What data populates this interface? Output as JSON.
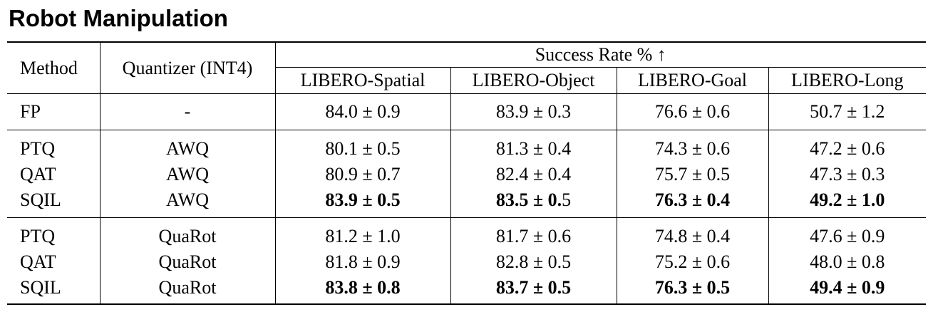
{
  "title": "Robot Manipulation",
  "table": {
    "header": {
      "method": "Method",
      "quantizer": "Quantizer (INT4)",
      "group": "Success Rate % ↑",
      "tasks": [
        "LIBERO-Spatial",
        "LIBERO-Object",
        "LIBERO-Goal",
        "LIBERO-Long"
      ]
    },
    "fp": {
      "method": "FP",
      "quantizer": "-",
      "values": [
        "84.0 ± 0.9",
        "83.9 ± 0.3",
        "76.6 ± 0.6",
        "50.7 ± 1.2"
      ]
    },
    "awq": [
      {
        "method": "PTQ",
        "quantizer": "AWQ",
        "values": [
          "80.1 ± 0.5",
          "81.3 ± 0.4",
          "74.3 ± 0.6",
          "47.2 ± 0.6"
        ]
      },
      {
        "method": "QAT",
        "quantizer": "AWQ",
        "values": [
          "80.9 ± 0.7",
          "82.4 ± 0.4",
          "75.7 ± 0.5",
          "47.3 ± 0.3"
        ]
      },
      {
        "method": "SQIL",
        "quantizer": "AWQ",
        "values": [
          "83.9 ± 0.5",
          "83.5 ± 0.",
          "76.3 ± 0.4",
          "49.2 ± 1.0"
        ],
        "value2_tail": "5"
      }
    ],
    "quarot": [
      {
        "method": "PTQ",
        "quantizer": "QuaRot",
        "values": [
          "81.2 ± 1.0",
          "81.7 ± 0.6",
          "74.8 ± 0.4",
          "47.6 ± 0.9"
        ]
      },
      {
        "method": "QAT",
        "quantizer": "QuaRot",
        "values": [
          "81.8 ± 0.9",
          "82.8 ± 0.5",
          "75.2 ± 0.6",
          "48.0 ± 0.8"
        ]
      },
      {
        "method": "SQIL",
        "quantizer": "QuaRot",
        "values": [
          "83.8 ± 0.8",
          "83.7 ± 0.5",
          "76.3 ± 0.5",
          "49.4 ± 0.9"
        ]
      }
    ]
  }
}
